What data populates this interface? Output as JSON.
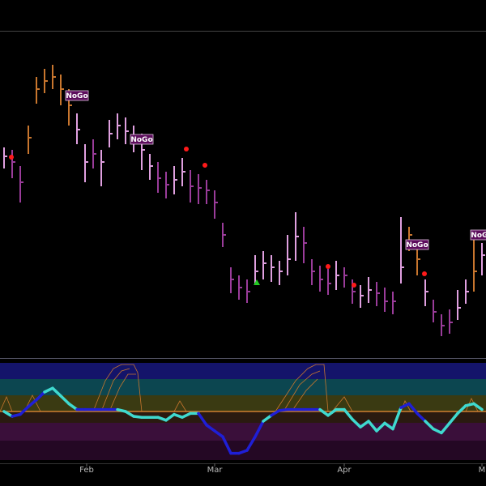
{
  "chart_data": {
    "type": "ohlc",
    "xlim": [
      -0.5,
      59.5
    ],
    "ylim": [
      0,
      400
    ],
    "xticks": [
      {
        "value": 10.2,
        "label": "Feb"
      },
      {
        "value": 26,
        "label": "Mar"
      },
      {
        "value": 42,
        "label": "Apr"
      },
      {
        "value": 59,
        "label": "M"
      }
    ],
    "close": [
      247,
      240,
      215,
      270,
      330,
      340,
      345,
      330,
      310,
      280,
      240,
      250,
      240,
      275,
      285,
      278,
      270,
      255,
      235,
      220,
      212,
      218,
      228,
      210,
      208,
      205,
      190,
      150,
      95,
      85,
      80,
      105,
      115,
      110,
      105,
      120,
      148,
      140,
      105,
      95,
      90,
      100,
      100,
      80,
      75,
      82,
      78,
      68,
      68,
      110,
      150,
      120,
      80,
      55,
      38,
      42,
      60,
      80,
      105,
      125
    ],
    "high": [
      258,
      255,
      235,
      285,
      345,
      355,
      360,
      348,
      330,
      300,
      262,
      268,
      255,
      292,
      300,
      295,
      285,
      275,
      250,
      240,
      228,
      235,
      245,
      230,
      225,
      218,
      205,
      165,
      110,
      100,
      95,
      125,
      130,
      125,
      118,
      150,
      178,
      160,
      120,
      112,
      108,
      118,
      110,
      95,
      88,
      98,
      92,
      85,
      80,
      172,
      160,
      140,
      95,
      70,
      52,
      58,
      82,
      95,
      155,
      140
    ],
    "low": [
      232,
      220,
      190,
      250,
      312,
      325,
      330,
      310,
      285,
      262,
      215,
      232,
      210,
      258,
      268,
      262,
      252,
      230,
      218,
      202,
      195,
      200,
      210,
      190,
      188,
      188,
      170,
      135,
      78,
      70,
      66,
      88,
      95,
      92,
      88,
      100,
      118,
      115,
      88,
      80,
      76,
      82,
      85,
      65,
      60,
      66,
      62,
      55,
      52,
      90,
      130,
      100,
      62,
      42,
      25,
      28,
      45,
      65,
      80,
      100
    ],
    "bar_colors": [
      "#e0a0e0",
      "#9a3c9a",
      "#9a3c9a",
      "#c8762e",
      "#c8762e",
      "#c8762e",
      "#c8762e",
      "#c8762e",
      "#c8762e",
      "#e0a0e0",
      "#e0a0e0",
      "#9a3c9a",
      "#e0a0e0",
      "#e0a0e0",
      "#e0a0e0",
      "#e0a0e0",
      "#e0a0e0",
      "#e0a0e0",
      "#e0a0e0",
      "#9a3c9a",
      "#9a3c9a",
      "#e0a0e0",
      "#e0a0e0",
      "#9a3c9a",
      "#9a3c9a",
      "#9a3c9a",
      "#9a3c9a",
      "#9a3c9a",
      "#9a3c9a",
      "#9a3c9a",
      "#9a3c9a",
      "#e0a0e0",
      "#e0a0e0",
      "#e0a0e0",
      "#e0a0e0",
      "#e0a0e0",
      "#e0a0e0",
      "#9a3c9a",
      "#9a3c9a",
      "#9a3c9a",
      "#9a3c9a",
      "#e0a0e0",
      "#9a3c9a",
      "#9a3c9a",
      "#e0a0e0",
      "#e0a0e0",
      "#9a3c9a",
      "#9a3c9a",
      "#9a3c9a",
      "#e0a0e0",
      "#c8762e",
      "#c8762e",
      "#e0a0e0",
      "#9a3c9a",
      "#9a3c9a",
      "#9a3c9a",
      "#e0a0e0",
      "#e0a0e0",
      "#c8762e",
      "#e0a0e0"
    ],
    "annotations": [
      {
        "text": "NoGo",
        "x": 9,
        "y": 322
      },
      {
        "text": "NoGo",
        "x": 17,
        "y": 268
      },
      {
        "text": "NoGo",
        "x": 51,
        "y": 138
      },
      {
        "text": "NoGo",
        "x": 59,
        "y": 150
      }
    ],
    "red_dots": {
      "color": "#ff1a1a",
      "x": [
        0.9,
        22.5,
        24.8,
        40,
        43.2,
        51.9
      ],
      "y": [
        246,
        256,
        236,
        111,
        88,
        102
      ]
    },
    "green_triangles": {
      "color": "#22cc22",
      "x": [
        31.2
      ],
      "y": [
        91
      ]
    },
    "oscillator": {
      "ylim": [
        -5,
        5
      ],
      "values": [
        0,
        -0.5,
        -0.3,
        0.5,
        1.2,
        2.0,
        2.4,
        1.6,
        0.8,
        0.2,
        0.2,
        0.2,
        0.2,
        0.2,
        0.2,
        0,
        -0.5,
        -0.6,
        -0.6,
        -0.6,
        -0.9,
        -0.3,
        -0.6,
        -0.2,
        -0.2,
        -1.4,
        -2.0,
        -2.6,
        -4.3,
        -4.3,
        -4.0,
        -2.6,
        -1.0,
        -0.4,
        0.1,
        0.2,
        0.2,
        0.2,
        0.2,
        0.2,
        -0.4,
        0.2,
        0.2,
        -0.8,
        -1.6,
        -1.0,
        -2.0,
        -1.2,
        -1.8,
        0.4,
        0.8,
        -0.2,
        -1.0,
        -1.8,
        -2.2,
        -1.2,
        -0.2,
        0.6,
        0.8,
        0.2
      ],
      "colors": [
        "#3fd9cf",
        "#3fd9cf",
        "#1f1fd6",
        "#1f1fd6",
        "#1f1fd6",
        "#1f1fd6",
        "#3fd9cf",
        "#3fd9cf",
        "#3fd9cf",
        "#3fd9cf",
        "#1f1fd6",
        "#1f1fd6",
        "#1f1fd6",
        "#1f1fd6",
        "#1f1fd6",
        "#3fd9cf",
        "#3fd9cf",
        "#3fd9cf",
        "#3fd9cf",
        "#3fd9cf",
        "#3fd9cf",
        "#3fd9cf",
        "#3fd9cf",
        "#3fd9cf",
        "#3fd9cf",
        "#1f1fd6",
        "#1f1fd6",
        "#1f1fd6",
        "#1f1fd6",
        "#1f1fd6",
        "#1f1fd6",
        "#1f1fd6",
        "#1f1fd6",
        "#3fd9cf",
        "#1f1fd6",
        "#1f1fd6",
        "#1f1fd6",
        "#1f1fd6",
        "#1f1fd6",
        "#1f1fd6",
        "#3fd9cf",
        "#3fd9cf",
        "#3fd9cf",
        "#3fd9cf",
        "#3fd9cf",
        "#3fd9cf",
        "#3fd9cf",
        "#3fd9cf",
        "#3fd9cf",
        "#3fd9cf",
        "#1f1fd6",
        "#1f1fd6",
        "#1f1fd6",
        "#3fd9cf",
        "#3fd9cf",
        "#3fd9cf",
        "#3fd9cf",
        "#3fd9cf",
        "#3fd9cf",
        "#3fd9cf"
      ]
    }
  }
}
